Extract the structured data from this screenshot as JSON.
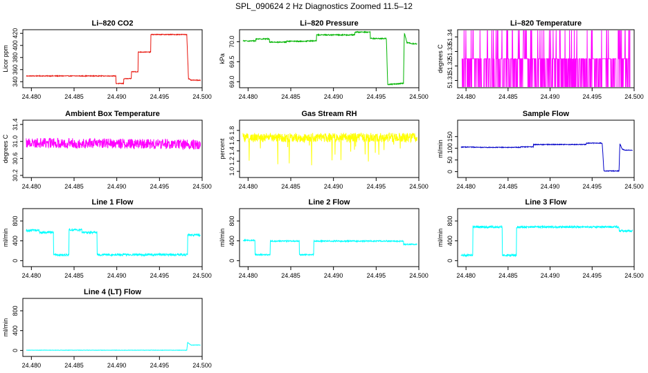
{
  "figure": {
    "title": "SPL_090624  2 Hz Diagnostics Zoomed 11.5–12"
  },
  "chart_data": [
    {
      "type": "line",
      "title": "Li–820 CO2",
      "xlabel": "",
      "ylabel": "Licor ppm",
      "color": "#e8140c",
      "xlim": [
        24.479,
        24.5
      ],
      "ylim": [
        330,
        426
      ],
      "xticks": [
        24.48,
        24.485,
        24.49,
        24.495,
        24.5
      ],
      "xtick_labels": [
        "24.480",
        "24.485",
        "24.490",
        "24.495",
        "24.500"
      ],
      "yticks": [
        340,
        360,
        380,
        400,
        420
      ],
      "ytick_labels": [
        "340",
        "360",
        "380",
        "400",
        "420"
      ],
      "noise": 0.6,
      "series": [
        {
          "name": "CO2",
          "x": [
            24.479,
            24.4899,
            24.4899,
            24.4908,
            24.4908,
            24.4917,
            24.4917,
            24.4925,
            24.4925,
            24.494,
            24.494,
            24.4982,
            24.4984,
            24.4987,
            24.5
          ],
          "y": [
            349.5,
            349.5,
            337,
            337,
            345,
            345,
            356.5,
            356.5,
            389,
            389,
            418,
            418,
            345,
            342.5,
            342.5
          ]
        }
      ]
    },
    {
      "type": "line",
      "title": "Li–820 Pressure",
      "xlabel": "",
      "ylabel": "kPa",
      "color": "#00b400",
      "xlim": [
        24.479,
        24.5
      ],
      "ylim": [
        68.85,
        70.3
      ],
      "xticks": [
        24.48,
        24.485,
        24.49,
        24.495,
        24.5
      ],
      "xtick_labels": [
        "24.480",
        "24.485",
        "24.490",
        "24.495",
        "24.500"
      ],
      "yticks": [
        69.0,
        69.5,
        70.0
      ],
      "ytick_labels": [
        "69.0",
        "69.5",
        "70.0"
      ],
      "noise": 0.012,
      "series": [
        {
          "name": "Pressure",
          "x": [
            24.479,
            24.4809,
            24.4809,
            24.4825,
            24.4825,
            24.4845,
            24.4845,
            24.4869,
            24.4869,
            24.488,
            24.488,
            24.4925,
            24.4925,
            24.4943,
            24.4943,
            24.4962,
            24.49635,
            24.4982,
            24.4983,
            24.4986,
            24.4992,
            24.5
          ],
          "y": [
            70.02,
            70.02,
            70.07,
            70.07,
            69.99,
            69.99,
            70.01,
            70.01,
            70.02,
            70.02,
            70.17,
            70.17,
            70.24,
            70.24,
            70.08,
            70.08,
            68.93,
            68.96,
            70.22,
            69.98,
            69.95,
            69.95
          ]
        }
      ]
    },
    {
      "type": "line",
      "title": "Li–820 Temperature",
      "xlabel": "",
      "ylabel": "degrees C",
      "color": "#ff00ff",
      "xlim": [
        24.479,
        24.5
      ],
      "ylim": [
        51.305,
        51.345
      ],
      "xticks": [
        24.48,
        24.485,
        24.49,
        24.495,
        24.5
      ],
      "xtick_labels": [
        "24.480",
        "24.485",
        "24.490",
        "24.495",
        "24.500"
      ],
      "yticks": [
        51.31,
        51.32,
        51.33,
        51.34
      ],
      "ytick_labels": [
        "51.31",
        "51.32",
        "51.33",
        "51.34"
      ],
      "render": "discrete",
      "levels": [
        51.305,
        51.325,
        51.345
      ],
      "series": [
        {
          "name": "Temperature",
          "x": [
            24.479,
            24.5
          ],
          "y": [
            51.325,
            51.325
          ]
        }
      ]
    },
    {
      "type": "line",
      "title": "Ambient Box Temperature",
      "xlabel": "",
      "ylabel": "degrees C",
      "color": "#ff00ff",
      "xlim": [
        24.479,
        24.5
      ],
      "ylim": [
        30.15,
        31.5
      ],
      "xticks": [
        24.48,
        24.485,
        24.49,
        24.495,
        24.5
      ],
      "xtick_labels": [
        "24.480",
        "24.485",
        "24.490",
        "24.495",
        "24.500"
      ],
      "yticks": [
        30.2,
        30.6,
        31.0,
        31.4
      ],
      "ytick_labels": [
        "30.2",
        "30.6",
        "31.0",
        "31.4"
      ],
      "render": "noisy",
      "noise": 0.12,
      "series": [
        {
          "name": "Ambient",
          "x": [
            24.479,
            24.5
          ],
          "y": [
            30.97,
            30.93
          ]
        }
      ]
    },
    {
      "type": "line",
      "title": "Gas Stream RH",
      "xlabel": "",
      "ylabel": "percent",
      "color": "#ffff00",
      "xlim": [
        24.479,
        24.5
      ],
      "ylim": [
        0.88,
        2.0
      ],
      "xticks": [
        24.48,
        24.485,
        24.49,
        24.495,
        24.5
      ],
      "xtick_labels": [
        "24.480",
        "24.485",
        "24.490",
        "24.495",
        "24.500"
      ],
      "yticks": [
        1.0,
        1.2,
        1.4,
        1.6,
        1.8
      ],
      "ytick_labels": [
        "1.0",
        "1.2",
        "1.4",
        "1.6",
        "1.8"
      ],
      "render": "noisy",
      "noise": 0.09,
      "spike_down": 0.5,
      "series": [
        {
          "name": "RH",
          "x": [
            24.479,
            24.5
          ],
          "y": [
            1.66,
            1.66
          ]
        }
      ]
    },
    {
      "type": "line",
      "title": "Sample Flow",
      "xlabel": "",
      "ylabel": "ml/min",
      "color": "#0000c8",
      "xlim": [
        24.479,
        24.5
      ],
      "ylim": [
        -25,
        220
      ],
      "xticks": [
        24.48,
        24.485,
        24.49,
        24.495,
        24.5
      ],
      "xtick_labels": [
        "24.480",
        "24.485",
        "24.490",
        "24.495",
        "24.500"
      ],
      "yticks": [
        0,
        50,
        100,
        150
      ],
      "ytick_labels": [
        "0",
        "50",
        "100",
        "150"
      ],
      "noise": 1.5,
      "series": [
        {
          "name": "Sample",
          "x": [
            24.479,
            24.4809,
            24.4809,
            24.4865,
            24.4865,
            24.488,
            24.488,
            24.4943,
            24.4943,
            24.4962,
            24.4964,
            24.4982,
            24.4983,
            24.4986,
            24.499,
            24.5
          ],
          "y": [
            105,
            105,
            104,
            104,
            106,
            106,
            116,
            116,
            122,
            122,
            3,
            3,
            120,
            95,
            92,
            92
          ]
        }
      ]
    },
    {
      "type": "line",
      "title": "Line 1 Flow",
      "xlabel": "",
      "ylabel": "ml/min",
      "color": "#00ffff",
      "xlim": [
        24.479,
        24.5
      ],
      "ylim": [
        -120,
        1050
      ],
      "xticks": [
        24.48,
        24.485,
        24.49,
        24.495,
        24.5
      ],
      "xtick_labels": [
        "24.480",
        "24.485",
        "24.490",
        "24.495",
        "24.500"
      ],
      "yticks": [
        0,
        400,
        800
      ],
      "ytick_labels": [
        "0",
        "400",
        "800"
      ],
      "noise": 22,
      "series": [
        {
          "name": "Line 1",
          "x": [
            24.479,
            24.4809,
            24.4809,
            24.4826,
            24.4826,
            24.4844,
            24.4844,
            24.4859,
            24.4859,
            24.4877,
            24.4877,
            24.4983,
            24.4983,
            24.5
          ],
          "y": [
            610,
            610,
            570,
            570,
            120,
            120,
            620,
            620,
            570,
            570,
            120,
            120,
            520,
            520
          ]
        }
      ]
    },
    {
      "type": "line",
      "title": "Line 2 Flow",
      "xlabel": "",
      "ylabel": "ml/min",
      "color": "#00ffff",
      "xlim": [
        24.479,
        24.5
      ],
      "ylim": [
        -120,
        1050
      ],
      "xticks": [
        24.48,
        24.485,
        24.49,
        24.495,
        24.5
      ],
      "xtick_labels": [
        "24.480",
        "24.485",
        "24.490",
        "24.495",
        "24.500"
      ],
      "yticks": [
        0,
        400,
        800
      ],
      "ytick_labels": [
        "0",
        "400",
        "800"
      ],
      "noise": 12,
      "series": [
        {
          "name": "Line 2",
          "x": [
            24.479,
            24.4808,
            24.4808,
            24.4826,
            24.4826,
            24.486,
            24.486,
            24.4877,
            24.4877,
            24.4982,
            24.4982,
            24.5
          ],
          "y": [
            410,
            410,
            120,
            120,
            395,
            395,
            120,
            120,
            395,
            395,
            330,
            330
          ]
        }
      ]
    },
    {
      "type": "line",
      "title": "Line 3 Flow",
      "xlabel": "",
      "ylabel": "ml/min",
      "color": "#00ffff",
      "xlim": [
        24.479,
        24.5
      ],
      "ylim": [
        -120,
        1050
      ],
      "xticks": [
        24.48,
        24.485,
        24.49,
        24.495,
        24.5
      ],
      "xtick_labels": [
        "24.480",
        "24.485",
        "24.490",
        "24.495",
        "24.500"
      ],
      "yticks": [
        0,
        400,
        800
      ],
      "ytick_labels": [
        "0",
        "400",
        "800"
      ],
      "noise": 20,
      "series": [
        {
          "name": "Line 3",
          "x": [
            24.479,
            24.4808,
            24.4808,
            24.4843,
            24.4843,
            24.486,
            24.486,
            24.4982,
            24.4982,
            24.5
          ],
          "y": [
            110,
            110,
            680,
            680,
            110,
            110,
            680,
            680,
            600,
            600
          ]
        }
      ]
    },
    {
      "type": "line",
      "title": "Line 4 (LT) Flow",
      "xlabel": "",
      "ylabel": "ml/min",
      "color": "#00ffff",
      "xlim": [
        24.479,
        24.5
      ],
      "ylim": [
        -120,
        1050
      ],
      "xticks": [
        24.48,
        24.485,
        24.49,
        24.495,
        24.5
      ],
      "xtick_labels": [
        "24.480",
        "24.485",
        "24.490",
        "24.495",
        "24.500"
      ],
      "yticks": [
        0,
        400,
        800
      ],
      "ytick_labels": [
        "0",
        "400",
        "800"
      ],
      "noise": 3,
      "series": [
        {
          "name": "Line 4",
          "x": [
            24.479,
            24.4982,
            24.4983,
            24.4987,
            24.5
          ],
          "y": [
            5,
            5,
            160,
            110,
            110
          ]
        }
      ]
    }
  ]
}
